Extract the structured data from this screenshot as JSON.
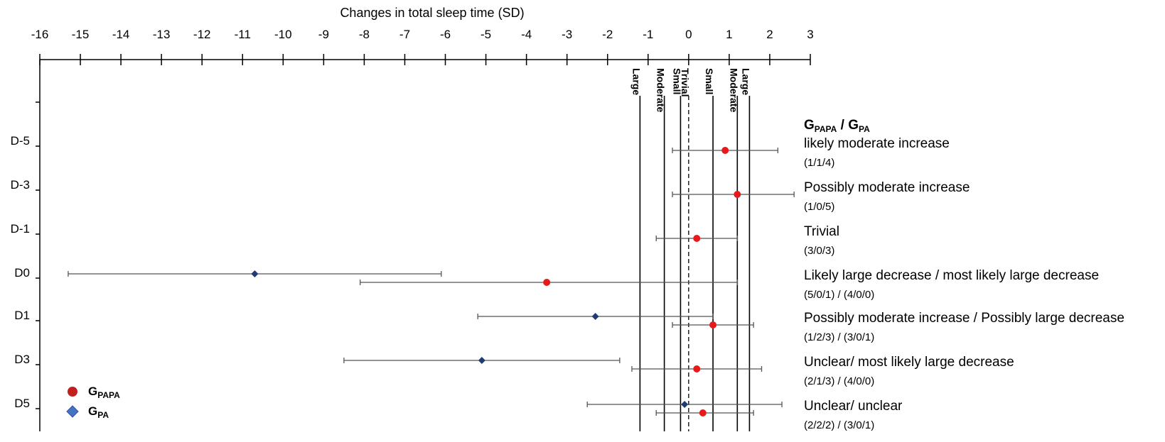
{
  "chart_data": {
    "type": "forest",
    "title": "",
    "xlabel": "Changes in total sleep time (SD)",
    "xlim": [
      -16,
      3
    ],
    "x_ticks": [
      -16,
      -15,
      -14,
      -13,
      -12,
      -11,
      -10,
      -9,
      -8,
      -7,
      -6,
      -5,
      -4,
      -3,
      -2,
      -1,
      0,
      1,
      2,
      3
    ],
    "categories": [
      "D-5",
      "D-3",
      "D-1",
      "D0",
      "D1",
      "D3",
      "D5"
    ],
    "thresholds": [
      {
        "value": -1.2,
        "label": "Large"
      },
      {
        "value": -0.6,
        "label": "Moderate"
      },
      {
        "value": -0.2,
        "label": "Small"
      },
      {
        "value": 0,
        "label": "Trivial",
        "dashed": true
      },
      {
        "value": 0.6,
        "label": "Small"
      },
      {
        "value": 1.2,
        "label": "Moderate"
      },
      {
        "value": 1.5,
        "label": "Large"
      }
    ],
    "series": [
      {
        "name": "G_PAPA",
        "color": "#e8191b",
        "marker": "circle",
        "points": [
          {
            "category": "D-5",
            "value": 0.9,
            "low": -0.4,
            "high": 2.2
          },
          {
            "category": "D-3",
            "value": 1.2,
            "low": -0.4,
            "high": 2.6
          },
          {
            "category": "D-1",
            "value": 0.2,
            "low": -0.8,
            "high": 1.2
          },
          {
            "category": "D0",
            "value": -3.5,
            "low": -8.1,
            "high": 1.2
          },
          {
            "category": "D1",
            "value": 0.6,
            "low": -0.4,
            "high": 1.6
          },
          {
            "category": "D3",
            "value": 0.2,
            "low": -1.4,
            "high": 1.8
          },
          {
            "category": "D5",
            "value": 0.35,
            "low": -0.8,
            "high": 1.6
          }
        ]
      },
      {
        "name": "G_PA",
        "color": "#1f3b73",
        "marker": "diamond",
        "points": [
          {
            "category": "D0",
            "value": -10.7,
            "low": -15.3,
            "high": -6.1
          },
          {
            "category": "D1",
            "value": -2.3,
            "low": -5.2,
            "high": 0.6
          },
          {
            "category": "D3",
            "value": -5.1,
            "low": -8.5,
            "high": -1.7
          },
          {
            "category": "D5",
            "value": -0.1,
            "low": -2.5,
            "high": 2.3
          }
        ]
      }
    ],
    "interpretation_header": {
      "base": "G",
      "sub1": "PAPA",
      "sep": " / ",
      "sub2": "PA"
    },
    "interpretations": [
      {
        "category": "D-5",
        "text": "likely moderate increase",
        "counts": "(1/1/4)"
      },
      {
        "category": "D-3",
        "text": "Possibly moderate increase",
        "counts": "(1/0/5)"
      },
      {
        "category": "D-1",
        "text": "Trivial",
        "counts": "(3/0/3)"
      },
      {
        "category": "D0",
        "text": "Likely large decrease / most likely large decrease",
        "counts": "(5/0/1) / (4/0/0)"
      },
      {
        "category": "D1",
        "text": "Possibly moderate increase /  Possibly large decrease",
        "counts": "(1/2/3) / (3/0/1)"
      },
      {
        "category": "D3",
        "text": "Unclear/ most likely large decrease",
        "counts": "(2/1/3) / (4/0/0)"
      },
      {
        "category": "D5",
        "text": "Unclear/ unclear",
        "counts": "(2/2/2) / (3/0/1)"
      }
    ],
    "legend": [
      {
        "base": "G",
        "sub": "PAPA",
        "marker": "circle",
        "color": "#c0201e"
      },
      {
        "base": "G",
        "sub": "PA",
        "marker": "diamond",
        "color": "#4472c4"
      }
    ],
    "legend_position": "bottom-left"
  }
}
